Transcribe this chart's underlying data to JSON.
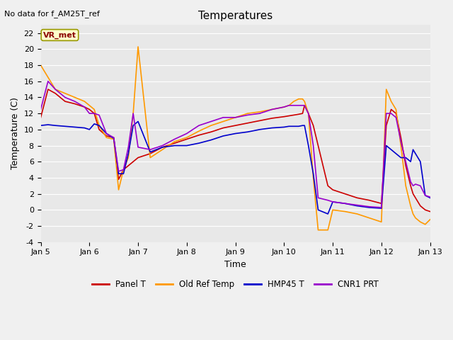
{
  "title": "Temperatures",
  "xlabel": "Time",
  "ylabel": "Temperature (C)",
  "note": "No data for f_AM25T_ref",
  "annotation": "VR_met",
  "xlim_labels": [
    "Jan 5",
    "Jan 6",
    "Jan 7",
    "Jan 8",
    "Jan 9",
    "Jan 10",
    "Jan 11",
    "Jan 12",
    "Jan 13"
  ],
  "ylim": [
    -4,
    23
  ],
  "yticks": [
    -4,
    -2,
    0,
    2,
    4,
    6,
    8,
    10,
    12,
    14,
    16,
    18,
    20,
    22
  ],
  "bg_color": "#e8e8e8",
  "fig_color": "#f0f0f0",
  "colors": {
    "Panel T": "#cc0000",
    "Old Ref Temp": "#ff9900",
    "HMP45 T": "#0000cc",
    "CNR1 PRT": "#9900cc"
  },
  "x": [
    5.0,
    5.15,
    5.3,
    5.5,
    5.7,
    5.9,
    6.0,
    6.1,
    6.2,
    6.35,
    6.5,
    6.6,
    6.7,
    6.8,
    6.9,
    7.0,
    7.25,
    7.5,
    7.75,
    8.0,
    8.25,
    8.5,
    8.75,
    9.0,
    9.25,
    9.5,
    9.75,
    10.0,
    10.1,
    10.2,
    10.3,
    10.38,
    10.42,
    10.5,
    10.6,
    10.7,
    10.9,
    11.0,
    11.25,
    11.5,
    11.75,
    12.0,
    12.1,
    12.2,
    12.3,
    12.4,
    12.5,
    12.6,
    12.65,
    12.7,
    12.8,
    12.9,
    13.0
  ],
  "panel_t": [
    11.5,
    15.0,
    14.5,
    13.5,
    13.2,
    12.8,
    12.5,
    12.0,
    10.0,
    9.2,
    9.0,
    3.8,
    5.0,
    5.5,
    6.0,
    6.5,
    7.0,
    7.8,
    8.3,
    8.8,
    9.3,
    9.7,
    10.2,
    10.5,
    10.8,
    11.1,
    11.4,
    11.6,
    11.7,
    11.8,
    11.9,
    12.0,
    13.0,
    12.0,
    10.5,
    8.0,
    3.0,
    2.5,
    2.0,
    1.5,
    1.2,
    0.8,
    10.5,
    12.5,
    12.0,
    9.0,
    5.5,
    3.0,
    2.0,
    1.5,
    0.5,
    0.0,
    -0.2
  ],
  "old_ref_t": [
    18.0,
    16.5,
    15.0,
    14.5,
    14.0,
    13.5,
    13.0,
    12.5,
    10.5,
    9.0,
    8.8,
    2.5,
    5.0,
    6.5,
    12.0,
    20.3,
    6.5,
    7.5,
    8.5,
    9.0,
    9.8,
    10.5,
    11.0,
    11.5,
    12.0,
    12.2,
    12.5,
    12.8,
    13.0,
    13.5,
    13.8,
    13.8,
    13.5,
    12.0,
    4.0,
    -2.5,
    -2.5,
    0.0,
    -0.2,
    -0.5,
    -1.0,
    -1.5,
    15.0,
    13.5,
    12.5,
    8.0,
    3.0,
    0.5,
    -0.5,
    -1.0,
    -1.5,
    -1.8,
    -1.2
  ],
  "hmp45_t": [
    10.5,
    10.6,
    10.5,
    10.4,
    10.3,
    10.2,
    10.0,
    10.7,
    10.5,
    9.5,
    8.9,
    4.5,
    4.5,
    7.0,
    10.5,
    11.0,
    7.2,
    7.8,
    8.0,
    8.0,
    8.3,
    8.7,
    9.2,
    9.5,
    9.7,
    10.0,
    10.2,
    10.3,
    10.4,
    10.4,
    10.4,
    10.5,
    10.5,
    8.0,
    4.5,
    0.0,
    -0.5,
    1.0,
    0.8,
    0.5,
    0.3,
    0.2,
    8.0,
    7.5,
    7.0,
    6.5,
    6.5,
    6.0,
    7.5,
    7.0,
    6.0,
    1.8,
    1.5
  ],
  "cnr1_prt": [
    12.5,
    16.0,
    15.0,
    14.0,
    13.5,
    12.8,
    12.0,
    12.0,
    11.8,
    9.5,
    9.0,
    4.8,
    5.0,
    7.8,
    12.0,
    7.8,
    7.5,
    8.0,
    8.8,
    9.5,
    10.5,
    11.0,
    11.5,
    11.5,
    11.8,
    12.0,
    12.5,
    12.8,
    13.0,
    13.0,
    13.0,
    13.0,
    13.0,
    12.0,
    8.0,
    1.5,
    1.2,
    1.0,
    0.8,
    0.6,
    0.4,
    0.3,
    12.0,
    12.0,
    11.5,
    8.5,
    6.0,
    3.5,
    3.0,
    3.2,
    3.0,
    1.8,
    1.6
  ]
}
